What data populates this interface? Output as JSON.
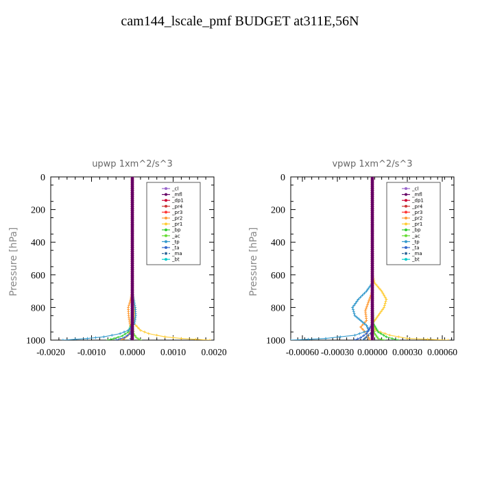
{
  "title": "cam144_lscale_pmf  BUDGET at311E,56N",
  "colors": {
    "_cl": "#9966cc",
    "_mfl": "#660066",
    "_dp1": "#cc0033",
    "_pr4": "#cc3333",
    "_pr3": "#ff3333",
    "_pr2": "#ff9933",
    "_pr1": "#ffcc33",
    "_bp": "#33cc33",
    "_ac": "#66dd33",
    "_tp": "#3399cc",
    "_ta": "#3366cc",
    "_ma": "#336699",
    "_bt": "#00cccc"
  },
  "chart_data": [
    {
      "type": "line",
      "title": "upwp   1xm^2/s^3",
      "ylabel": "Pressure  [hPa]",
      "xlim": [
        -0.002,
        0.002
      ],
      "ylim": [
        1000,
        0
      ],
      "x_ticks": [
        -0.002,
        -0.001,
        0.0,
        0.001,
        0.002
      ],
      "x_tick_labels": [
        "-0.0020",
        "-0.0010",
        "0.0000",
        "0.0010",
        "0.0020"
      ],
      "y_ticks": [
        0,
        200,
        400,
        600,
        800,
        1000
      ],
      "y_tick_labels": [
        "0",
        "200",
        "400",
        "600",
        "800",
        "1000"
      ],
      "legend_position": "top-right",
      "legend": [
        "_cl",
        "_mfl",
        "_dp1",
        "_pr4",
        "_pr3",
        "_pr2",
        "_pr1",
        "_bp",
        "_ac",
        "_tp",
        "_ta",
        "_ma",
        "_bt"
      ],
      "series": [
        {
          "name": "_pr1",
          "p": [
            0,
            700,
            760,
            800,
            850,
            900,
            940,
            960,
            980,
            990,
            1000
          ],
          "x": [
            0,
            0,
            4e-05,
            6e-05,
            5e-05,
            5e-05,
            0.0002,
            0.0004,
            0.0008,
            0.0012,
            0.0019
          ]
        },
        {
          "name": "_pr2",
          "p": [
            0,
            700,
            760,
            800,
            850,
            900,
            940,
            970,
            990,
            1000
          ],
          "x": [
            0,
            0,
            -5e-05,
            -0.0001,
            -9e-05,
            -6e-05,
            -3e-05,
            -0.0001,
            -0.0002,
            -0.0003
          ]
        },
        {
          "name": "_bp",
          "p": [
            0,
            800,
            900,
            950,
            975,
            990,
            1000
          ],
          "x": [
            0,
            0,
            -2e-05,
            -0.0001,
            -0.00025,
            -0.00045,
            -0.0006
          ]
        },
        {
          "name": "_ac",
          "p": [
            0,
            900,
            960,
            985,
            1000
          ],
          "x": [
            0,
            0,
            3e-05,
            0.0001,
            0.0002
          ]
        },
        {
          "name": "_tp",
          "p": [
            0,
            700,
            760,
            800,
            850,
            900,
            940,
            960,
            980,
            990,
            1000
          ],
          "x": [
            0,
            0,
            4e-05,
            7e-05,
            8e-05,
            5e-05,
            -0.0001,
            -0.0003,
            -0.0007,
            -0.0011,
            -0.0017
          ]
        },
        {
          "name": "_ta",
          "p": [
            0,
            900,
            960,
            985,
            1000
          ],
          "x": [
            0,
            0,
            -5e-05,
            -0.0002,
            -0.0004
          ]
        },
        {
          "name": "_ma",
          "p": [
            0,
            950,
            980,
            1000
          ],
          "x": [
            0,
            0,
            -2e-05,
            -5e-05
          ]
        },
        {
          "name": "_bt",
          "p": [
            0,
            1000
          ],
          "x": [
            0,
            0
          ]
        },
        {
          "name": "_pr4",
          "p": [
            0,
            1000
          ],
          "x": [
            0,
            0
          ]
        },
        {
          "name": "_pr3",
          "p": [
            0,
            1000
          ],
          "x": [
            0,
            0
          ]
        },
        {
          "name": "_cl",
          "p": [
            0,
            1000
          ],
          "x": [
            0,
            0
          ]
        },
        {
          "name": "_dp1",
          "p": [
            0,
            1000
          ],
          "x": [
            0,
            0
          ]
        },
        {
          "name": "_mfl",
          "p": [
            0,
            1000
          ],
          "x": [
            0,
            0
          ]
        }
      ]
    },
    {
      "type": "line",
      "title": "vpwp   1xm^2/s^3",
      "ylabel": "Pressure  [hPa]",
      "xlim": [
        -0.0007,
        0.0007
      ],
      "ylim": [
        1000,
        0
      ],
      "x_ticks": [
        -0.0006,
        -0.0003,
        0.0,
        0.0003,
        0.0006
      ],
      "x_tick_labels": [
        "-0.00060",
        "-0.00030",
        "0.00000",
        "0.00030",
        "0.00060"
      ],
      "y_ticks": [
        0,
        200,
        400,
        600,
        800,
        1000
      ],
      "y_tick_labels": [
        "0",
        "200",
        "400",
        "600",
        "800",
        "1000"
      ],
      "legend_position": "top-right",
      "legend": [
        "_cl",
        "_mfl",
        "_dp1",
        "_pr4",
        "_pr3",
        "_pr2",
        "_pr1",
        "_bp",
        "_ac",
        "_tp",
        "_ta",
        "_ma",
        "_bt"
      ],
      "series": [
        {
          "name": "_pr1",
          "p": [
            0,
            600,
            650,
            700,
            750,
            800,
            850,
            900,
            940,
            970,
            990,
            1000
          ],
          "x": [
            0,
            0,
            2e-05,
            8e-05,
            0.00012,
            0.0001,
            5e-05,
            0.0,
            3e-05,
            0.00015,
            0.0003,
            0.00065
          ]
        },
        {
          "name": "_pr2",
          "p": [
            0,
            700,
            760,
            820,
            880,
            920,
            960,
            1000
          ],
          "x": [
            0,
            0,
            -3e-05,
            -6e-05,
            -5e-05,
            -0.0001,
            -5e-05,
            -2e-05
          ]
        },
        {
          "name": "_bp",
          "p": [
            0,
            800,
            900,
            950,
            980,
            1000
          ],
          "x": [
            0,
            0,
            1e-05,
            5e-05,
            0.00012,
            0.00022
          ]
        },
        {
          "name": "_ac",
          "p": [
            0,
            900,
            960,
            990,
            1000
          ],
          "x": [
            0,
            0,
            2e-05,
            5e-05,
            0.0001
          ]
        },
        {
          "name": "_tp",
          "p": [
            0,
            650,
            700,
            750,
            800,
            850,
            880,
            910,
            940,
            970,
            990,
            1000
          ],
          "x": [
            0,
            0,
            -5e-05,
            -0.00012,
            -0.00017,
            -0.00015,
            -0.0001,
            -5e-05,
            -3e-05,
            -0.00015,
            -0.0004,
            -0.0007
          ]
        },
        {
          "name": "_ta",
          "p": [
            0,
            900,
            960,
            985,
            1000
          ],
          "x": [
            0,
            0,
            -5e-05,
            -0.0001,
            -0.00015
          ]
        },
        {
          "name": "_ma",
          "p": [
            0,
            950,
            980,
            1000
          ],
          "x": [
            0,
            0,
            -5e-05,
            -8e-05
          ]
        },
        {
          "name": "_bt",
          "p": [
            0,
            1000
          ],
          "x": [
            0,
            0
          ]
        },
        {
          "name": "_pr4",
          "p": [
            0,
            1000
          ],
          "x": [
            0,
            0
          ]
        },
        {
          "name": "_pr3",
          "p": [
            0,
            1000
          ],
          "x": [
            0,
            0
          ]
        },
        {
          "name": "_cl",
          "p": [
            0,
            1000
          ],
          "x": [
            0,
            0
          ]
        },
        {
          "name": "_dp1",
          "p": [
            0,
            1000
          ],
          "x": [
            0,
            0
          ]
        },
        {
          "name": "_mfl",
          "p": [
            0,
            1000
          ],
          "x": [
            0,
            0
          ]
        }
      ]
    }
  ]
}
